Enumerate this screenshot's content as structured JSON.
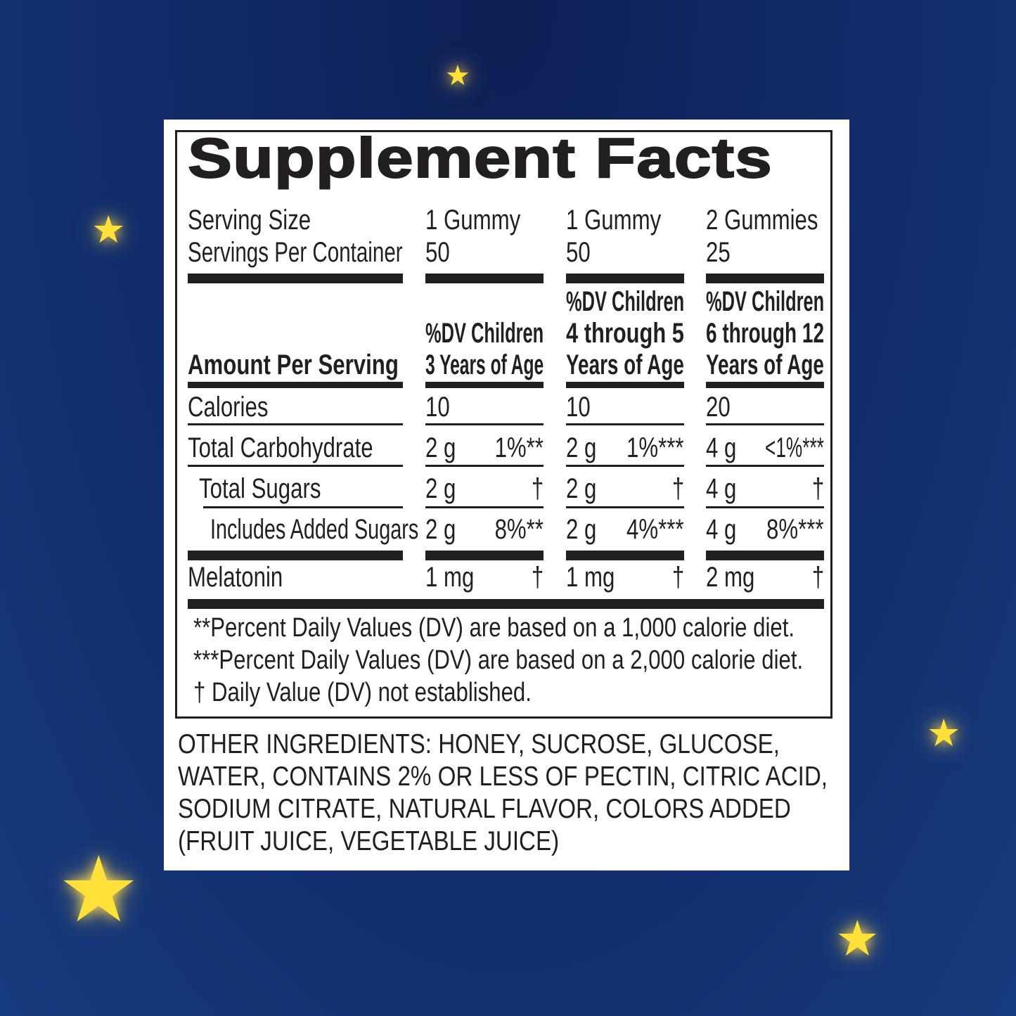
{
  "title": "Supplement Facts",
  "serving": {
    "size_label": "Serving Size",
    "servings_label": "Servings Per Container",
    "columns": [
      {
        "size": "1 Gummy",
        "servings": "50"
      },
      {
        "size": "1 Gummy",
        "servings": "50"
      },
      {
        "size": "2 Gummies",
        "servings": "25"
      }
    ]
  },
  "header": {
    "amount_label": "Amount Per Serving",
    "columns": [
      [
        "",
        "%DV Children",
        "3 Years of Age"
      ],
      [
        "%DV Children",
        "4 through 5",
        "Years of Age"
      ],
      [
        "%DV Children",
        "6 through 12",
        "Years of Age"
      ]
    ]
  },
  "rows": [
    {
      "label": "Calories",
      "values": [
        [
          "10",
          ""
        ],
        [
          "10",
          ""
        ],
        [
          "20",
          ""
        ]
      ]
    },
    {
      "label": "Total Carbohydrate",
      "values": [
        [
          "2 g",
          "1%**"
        ],
        [
          "2 g",
          "1%***"
        ],
        [
          "4 g",
          "<1%***"
        ]
      ]
    },
    {
      "label": "Total Sugars",
      "values": [
        [
          "2 g",
          "†"
        ],
        [
          "2 g",
          "†"
        ],
        [
          "4 g",
          "†"
        ]
      ]
    },
    {
      "label": "Includes Added Sugars",
      "values": [
        [
          "2 g",
          "8%**"
        ],
        [
          "2 g",
          "4%***"
        ],
        [
          "4 g",
          "8%***"
        ]
      ]
    },
    {
      "label": "Melatonin",
      "values": [
        [
          "1 mg",
          "†"
        ],
        [
          "1 mg",
          "†"
        ],
        [
          "2 mg",
          "†"
        ]
      ]
    }
  ],
  "footnotes": [
    "**Percent Daily Values (DV) are based on a 1,000 calorie diet.",
    "***Percent Daily Values (DV) are based on a 2,000 calorie diet.",
    "† Daily Value (DV) not established."
  ],
  "ingredients": [
    "OTHER INGREDIENTS: HONEY, SUCROSE, GLUCOSE,",
    "WATER, CONTAINS 2% OR LESS OF PECTIN, CITRIC ACID,",
    "SODIUM CITRATE, NATURAL FLAVOR, COLORS ADDED",
    "(FRUIT JUICE, VEGETABLE JUICE)"
  ],
  "colors": {
    "background": "#102a66",
    "star": "#ffe13a",
    "ink": "#231f20"
  }
}
